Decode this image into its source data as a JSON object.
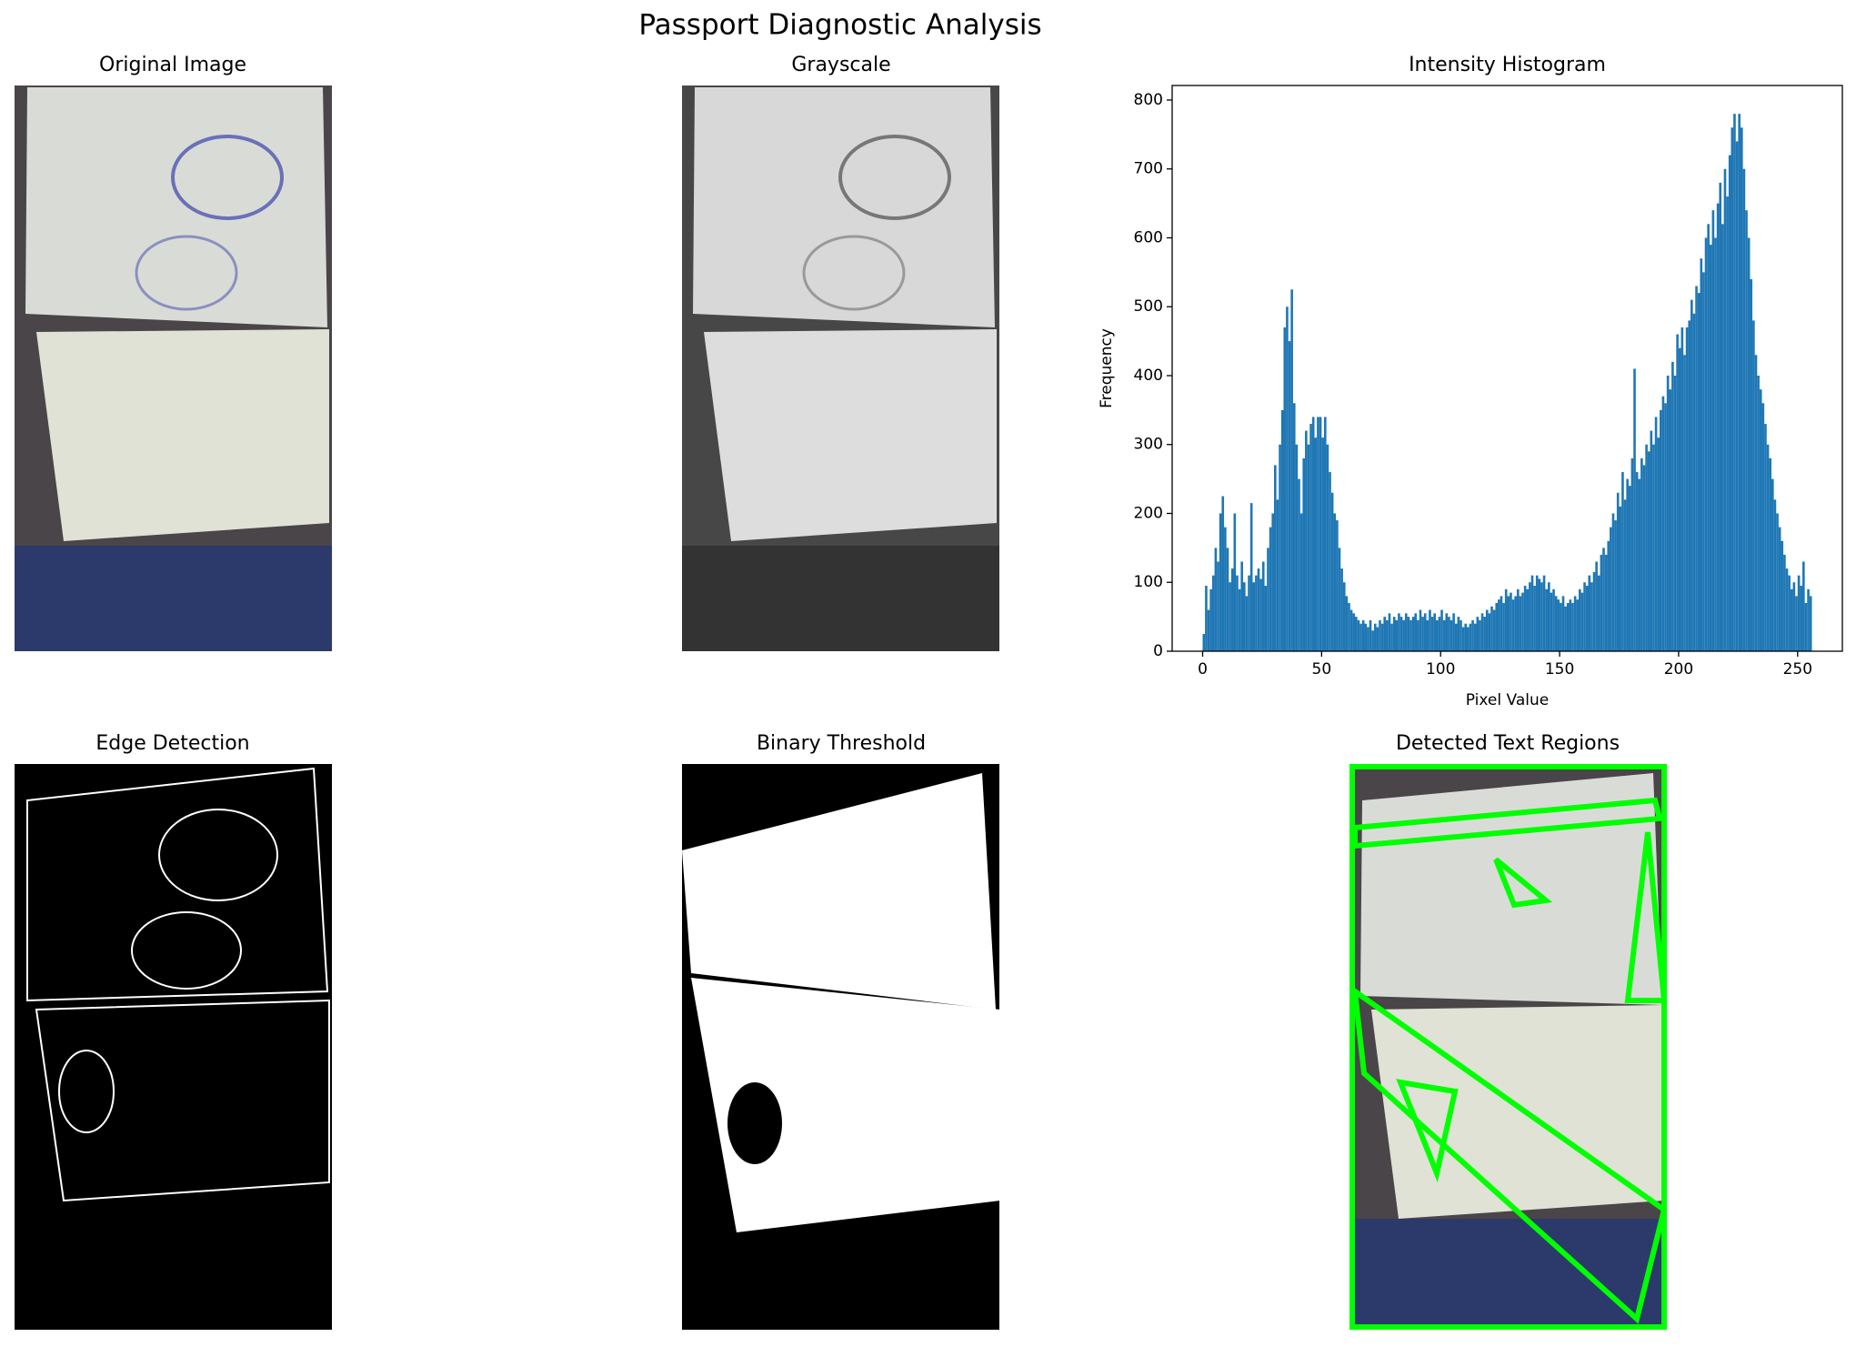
{
  "title": "Passport Diagnostic Analysis",
  "panels": [
    {
      "title": "Original Image"
    },
    {
      "title": "Grayscale"
    },
    {
      "title": "Edge Detection"
    },
    {
      "title": "Binary Threshold"
    },
    {
      "title": "Detected Text Regions"
    }
  ],
  "chart_data": {
    "type": "histogram",
    "title": "Intensity Histogram",
    "xlabel": "Pixel Value",
    "ylabel": "Frequency",
    "color": "#1f77b4",
    "bins": [
      0,
      1,
      2,
      3,
      4,
      5,
      6,
      7,
      8,
      9,
      10,
      11,
      12,
      13,
      14,
      15,
      16,
      17,
      18,
      19,
      20,
      21,
      22,
      23,
      24,
      25,
      26,
      27,
      28,
      29,
      30,
      31,
      32,
      33,
      34,
      35,
      36,
      37,
      38,
      39,
      40,
      41,
      42,
      43,
      44,
      45,
      46,
      47,
      48,
      49,
      50,
      51,
      52,
      53,
      54,
      55,
      56,
      57,
      58,
      59,
      60,
      61,
      62,
      63,
      64,
      65,
      66,
      67,
      68,
      69,
      70,
      71,
      72,
      73,
      74,
      75,
      76,
      77,
      78,
      79,
      80,
      81,
      82,
      83,
      84,
      85,
      86,
      87,
      88,
      89,
      90,
      91,
      92,
      93,
      94,
      95,
      96,
      97,
      98,
      99,
      100,
      101,
      102,
      103,
      104,
      105,
      106,
      107,
      108,
      109,
      110,
      111,
      112,
      113,
      114,
      115,
      116,
      117,
      118,
      119,
      120,
      121,
      122,
      123,
      124,
      125,
      126,
      127,
      128,
      129,
      130,
      131,
      132,
      133,
      134,
      135,
      136,
      137,
      138,
      139,
      140,
      141,
      142,
      143,
      144,
      145,
      146,
      147,
      148,
      149,
      150,
      151,
      152,
      153,
      154,
      155,
      156,
      157,
      158,
      159,
      160,
      161,
      162,
      163,
      164,
      165,
      166,
      167,
      168,
      169,
      170,
      171,
      172,
      173,
      174,
      175,
      176,
      177,
      178,
      179,
      180,
      181,
      182,
      183,
      184,
      185,
      186,
      187,
      188,
      189,
      190,
      191,
      192,
      193,
      194,
      195,
      196,
      197,
      198,
      199,
      200,
      201,
      202,
      203,
      204,
      205,
      206,
      207,
      208,
      209,
      210,
      211,
      212,
      213,
      214,
      215,
      216,
      217,
      218,
      219,
      220,
      221,
      222,
      223,
      224,
      225,
      226,
      227,
      228,
      229,
      230,
      231,
      232,
      233,
      234,
      235,
      236,
      237,
      238,
      239,
      240,
      241,
      242,
      243,
      244,
      245,
      246,
      247,
      248,
      249,
      250,
      251,
      252,
      253,
      254,
      255,
      256
    ],
    "values": [
      25,
      95,
      60,
      90,
      110,
      150,
      130,
      200,
      225,
      180,
      150,
      100,
      120,
      200,
      110,
      90,
      130,
      100,
      80,
      110,
      215,
      100,
      110,
      120,
      105,
      130,
      95,
      150,
      180,
      200,
      270,
      220,
      300,
      350,
      470,
      500,
      450,
      525,
      360,
      300,
      250,
      200,
      280,
      320,
      300,
      330,
      340,
      310,
      340,
      340,
      310,
      340,
      300,
      260,
      230,
      200,
      190,
      150,
      120,
      100,
      80,
      70,
      60,
      55,
      50,
      45,
      40,
      45,
      40,
      35,
      45,
      30,
      40,
      35,
      45,
      40,
      50,
      45,
      55,
      40,
      50,
      45,
      55,
      50,
      45,
      55,
      50,
      45,
      50,
      55,
      45,
      60,
      50,
      55,
      45,
      60,
      50,
      55,
      45,
      50,
      60,
      45,
      55,
      50,
      45,
      55,
      40,
      50,
      45,
      35,
      40,
      35,
      40,
      45,
      40,
      50,
      45,
      55,
      50,
      60,
      55,
      65,
      60,
      70,
      75,
      80,
      70,
      90,
      80,
      85,
      75,
      80,
      90,
      80,
      85,
      95,
      90,
      100,
      110,
      95,
      110,
      105,
      100,
      110,
      90,
      100,
      85,
      90,
      80,
      75,
      70,
      80,
      65,
      70,
      75,
      70,
      80,
      75,
      90,
      85,
      100,
      95,
      110,
      100,
      115,
      130,
      110,
      140,
      150,
      140,
      160,
      180,
      200,
      190,
      230,
      210,
      260,
      220,
      250,
      240,
      280,
      410,
      260,
      250,
      280,
      270,
      300,
      290,
      320,
      300,
      340,
      310,
      350,
      370,
      360,
      400,
      380,
      420,
      400,
      460,
      440,
      470,
      430,
      470,
      480,
      510,
      490,
      530,
      520,
      570,
      550,
      600,
      620,
      590,
      640,
      600,
      650,
      680,
      620,
      700,
      660,
      720,
      760,
      780,
      740,
      780,
      760,
      700,
      640,
      600,
      540,
      480,
      430,
      400,
      380,
      360,
      330,
      300,
      280,
      250,
      220,
      200,
      180,
      160,
      140,
      120,
      110,
      90,
      100,
      80,
      110,
      95,
      130,
      70,
      90,
      80
    ],
    "xlim": [
      -12.8,
      268.8
    ],
    "ylim": [
      0,
      821.1
    ],
    "xticks": [
      0,
      50,
      100,
      150,
      200,
      250
    ],
    "yticks": [
      0,
      100,
      200,
      300,
      400,
      500,
      600,
      700,
      800
    ]
  }
}
